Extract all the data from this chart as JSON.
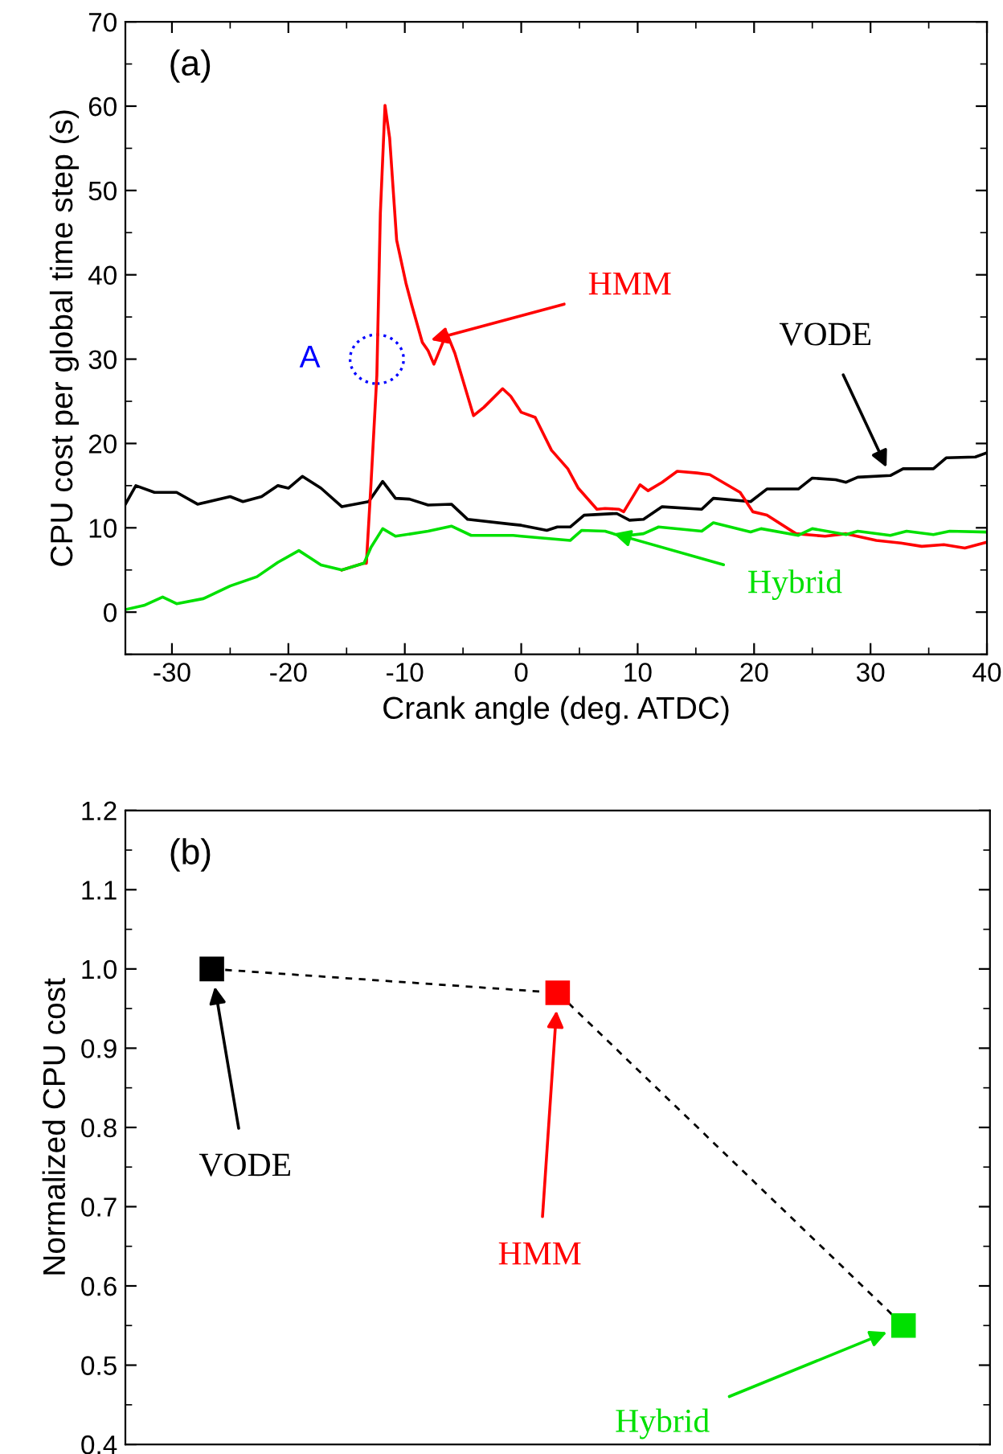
{
  "chart_data": [
    {
      "type": "line",
      "xlabel": "Crank angle (deg. ATDC)",
      "ylabel": "CPU cost per global time step (s)",
      "xlim": [
        -34,
        40
      ],
      "ylim": [
        -5,
        70
      ],
      "xticks": [
        -30,
        -20,
        -10,
        0,
        10,
        20,
        30,
        40
      ],
      "yticks": [
        0,
        10,
        20,
        30,
        40,
        50,
        60,
        70
      ],
      "grid": false,
      "legend": false,
      "annotations": [
        "(a)",
        {
          "text": "A",
          "x": -12.4,
          "y": 30
        }
      ],
      "series": [
        {
          "name": "VODE",
          "color": "#000000",
          "x": [
            -34,
            -33.1,
            -31.5,
            -29.6,
            -27.8,
            -25,
            -23.9,
            -22.3,
            -20.9,
            -20,
            -18.8,
            -17.2,
            -15.4,
            -13.1,
            -11.9,
            -10.8,
            -9.6,
            -8,
            -6,
            -4.6,
            -0.7,
            0,
            2.2,
            3.1,
            4.2,
            5.4,
            8.2,
            9.3,
            10.5,
            12.1,
            15.5,
            16.5,
            19.7,
            21.1,
            23.8,
            25,
            27,
            27.9,
            28.9,
            31.7,
            32.8,
            35.4,
            36.5,
            39,
            40
          ],
          "values": [
            12.8,
            15.0,
            14.2,
            14.2,
            12.8,
            13.7,
            13.1,
            13.7,
            15.0,
            14.7,
            16.1,
            14.7,
            12.5,
            13.1,
            15.5,
            13.5,
            13.4,
            12.7,
            12.8,
            11.0,
            10.4,
            10.3,
            9.7,
            10.1,
            10.1,
            11.5,
            11.7,
            10.9,
            11.0,
            12.5,
            12.2,
            13.5,
            13.1,
            14.6,
            14.6,
            15.9,
            15.7,
            15.4,
            16.0,
            16.2,
            17.0,
            17.0,
            18.3,
            18.4,
            18.9
          ]
        },
        {
          "name": "HMM",
          "color": "#ff0000",
          "x": [
            -15.4,
            -13.5,
            -13.3,
            -12.9,
            -12.4,
            -12.1,
            -11.7,
            -11.3,
            -10.7,
            -9.9,
            -9.4,
            -8.5,
            -8,
            -7.5,
            -6.4,
            -5.7,
            -4.1,
            -3.2,
            -1.6,
            -0.9,
            0,
            1.2,
            2.6,
            4,
            4.9,
            6.5,
            7.2,
            8.4,
            8.8,
            10.2,
            10.9,
            12.1,
            13.4,
            15.1,
            16.2,
            18.8,
            19.9,
            21.1,
            23.6,
            26.1,
            27.9,
            30.5,
            32.6,
            34.4,
            36.3,
            38.1,
            40
          ],
          "values": [
            5.0,
            5.8,
            5.8,
            15.3,
            28.1,
            47.3,
            60.1,
            56.2,
            44.1,
            39.0,
            36.4,
            32.0,
            31.0,
            29.4,
            33.1,
            30.7,
            23.3,
            24.3,
            26.5,
            25.6,
            23.7,
            23.1,
            19.2,
            17.0,
            14.7,
            12.2,
            12.3,
            12.2,
            11.9,
            15.1,
            14.4,
            15.4,
            16.7,
            16.5,
            16.3,
            14.2,
            11.9,
            11.5,
            9.3,
            9.0,
            9.3,
            8.5,
            8.2,
            7.8,
            8.0,
            7.6,
            8.3
          ]
        },
        {
          "name": "Hybrid",
          "color": "#00e000",
          "x": [
            -34,
            -32.4,
            -30.8,
            -29.6,
            -27.3,
            -25,
            -22.7,
            -20.9,
            -19.1,
            -18.1,
            -17.2,
            -15.4,
            -13.5,
            -12.9,
            -11.9,
            -10.8,
            -8,
            -6,
            -4.3,
            -0.7,
            0,
            4.2,
            5.2,
            7.2,
            8.6,
            10.5,
            11.8,
            15.5,
            16.5,
            19.7,
            20.6,
            23.8,
            25,
            27.9,
            28.9,
            31.7,
            33.1,
            35.4,
            36.8,
            40
          ],
          "values": [
            0.3,
            0.8,
            1.8,
            1.0,
            1.6,
            3.1,
            4.2,
            5.9,
            7.3,
            6.4,
            5.6,
            5.0,
            5.8,
            7.7,
            9.9,
            9.0,
            9.6,
            10.2,
            9.1,
            9.1,
            9.0,
            8.5,
            9.7,
            9.6,
            9.0,
            9.3,
            10.1,
            9.6,
            10.6,
            9.5,
            9.9,
            9.1,
            9.9,
            9.2,
            9.6,
            9.1,
            9.6,
            9.2,
            9.6,
            9.5
          ]
        }
      ]
    },
    {
      "type": "line",
      "ylabel": "Normalized CPU cost",
      "categories": [
        null,
        null,
        null
      ],
      "ylim": [
        0.4,
        1.2
      ],
      "yticks": [
        0.4,
        0.5,
        0.6,
        0.7,
        0.8,
        0.9,
        {
          "value": 1.0,
          "label": "1.0"
        },
        1.1,
        1.2
      ],
      "grid": false,
      "legend": false,
      "tick_labels": "y",
      "marker": "square",
      "line_style": "dashed",
      "annotations": [
        "(b)",
        "VODE",
        "HMM",
        "Hybrid"
      ],
      "series": [
        {
          "color": "#000000",
          "colors": [
            "#000000",
            "#ff0000",
            "#00e000"
          ],
          "values": [
            1.0,
            0.97,
            0.55
          ]
        }
      ]
    }
  ]
}
